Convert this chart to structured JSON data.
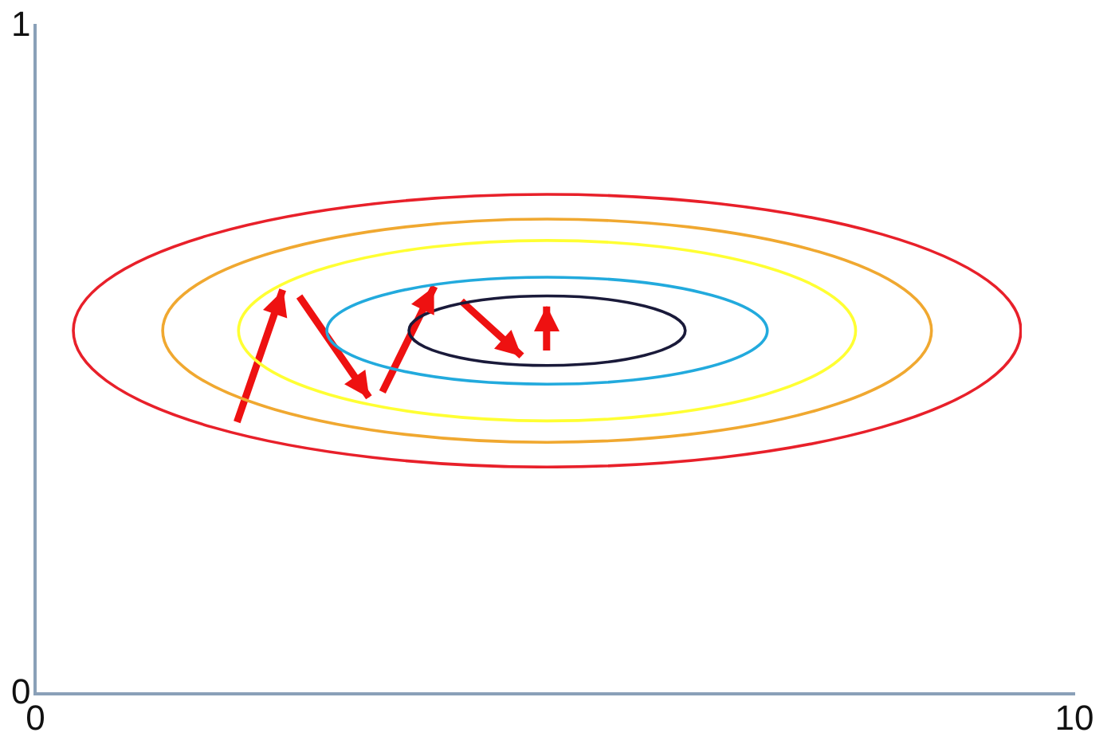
{
  "chart_data": {
    "type": "line",
    "xlim": [
      0,
      10
    ],
    "xticks": [
      0,
      10
    ],
    "ylim": [
      0,
      1
    ],
    "yticks": [
      0,
      1
    ],
    "grid": false,
    "legend": false,
    "marker": "none",
    "series": [
      {
        "color": "#ee1111",
        "x": [
          1.94,
          2.38,
          2.46,
          2.54,
          3.21,
          3.28,
          3.34,
          3.84,
          3.97,
          4.1,
          4.68,
          4.8,
          4.92,
          4.92
        ],
        "values": [
          0.407,
          0.605,
          null,
          0.595,
          0.444,
          null,
          0.452,
          0.61,
          null,
          0.588,
          0.506,
          null,
          0.514,
          0.58
        ]
      }
    ]
  }
}
